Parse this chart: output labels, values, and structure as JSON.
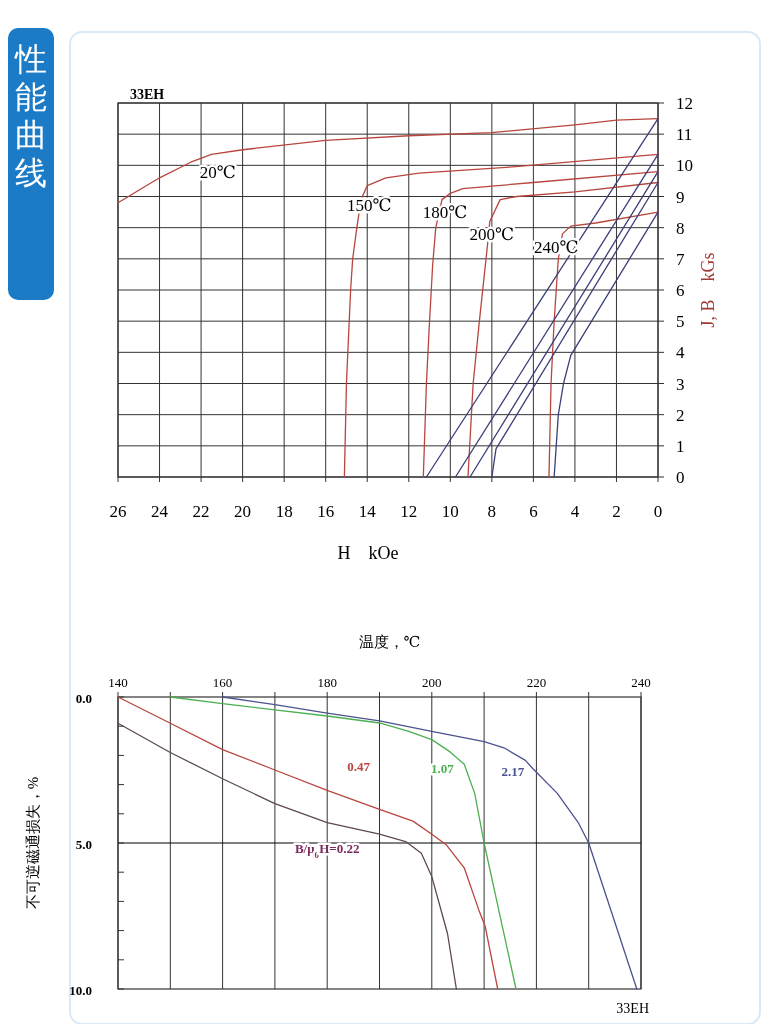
{
  "chart_data": [
    {
      "type": "line",
      "title": "性能曲线",
      "subtitle": "33EH",
      "xlabel": "H    kOe",
      "ylabel": "J, B    kGs",
      "xlim": [
        26,
        0
      ],
      "ylim": [
        0,
        12
      ],
      "xticks": [
        26,
        24,
        22,
        20,
        18,
        16,
        14,
        12,
        10,
        8,
        6,
        4,
        2,
        0
      ],
      "yticks": [
        0,
        1,
        2,
        3,
        4,
        5,
        6,
        7,
        8,
        9,
        10,
        11,
        12
      ],
      "grid": true,
      "series": [
        {
          "name": "20℃",
          "color": "#b8453e",
          "x": [
            26,
            24,
            22.5,
            21.5,
            20,
            16,
            12,
            8,
            4,
            2,
            0
          ],
          "values": [
            8.8,
            9.6,
            10.1,
            10.35,
            10.5,
            10.8,
            10.95,
            11.05,
            11.3,
            11.45,
            11.5
          ]
        },
        {
          "name": "150℃",
          "color": "#b8453e",
          "x": [
            15.1,
            15,
            14.8,
            14.7,
            14.5,
            14.3,
            14,
            13.1,
            11.5,
            7,
            0
          ],
          "values": [
            0,
            3,
            6,
            7,
            8,
            8.9,
            9.35,
            9.6,
            9.75,
            9.95,
            10.35
          ]
        },
        {
          "name": "180℃",
          "color": "#b8453e",
          "x": [
            11.3,
            11.15,
            11,
            10.85,
            10.7,
            10.4,
            10,
            9.4,
            6,
            0
          ],
          "values": [
            0,
            3,
            5,
            6.8,
            8,
            8.9,
            9.1,
            9.25,
            9.45,
            9.8
          ]
        },
        {
          "name": "200℃",
          "color": "#b8453e",
          "x": [
            9.15,
            8.9,
            8.6,
            8.2,
            8.1,
            7.6,
            6.8,
            4,
            0
          ],
          "values": [
            0,
            3,
            5,
            7.5,
            8.2,
            8.9,
            9,
            9.15,
            9.45
          ]
        },
        {
          "name": "240℃",
          "color": "#b8453e",
          "x": [
            5.25,
            5.15,
            5,
            4.9,
            4.8,
            4.6,
            4.2,
            3,
            0
          ],
          "values": [
            0,
            3,
            5,
            6,
            7,
            7.8,
            8.05,
            8.15,
            8.5
          ]
        },
        {
          "color": "#3b3f78",
          "x": [
            11.15,
            0
          ],
          "values": [
            0,
            11.5
          ]
        },
        {
          "color": "#3b3f78",
          "x": [
            9.75,
            0
          ],
          "values": [
            0,
            10.35
          ]
        },
        {
          "color": "#3b3f78",
          "x": [
            9.05,
            0
          ],
          "values": [
            0,
            9.8
          ]
        },
        {
          "color": "#3b3f78",
          "x": [
            8,
            7.8,
            0
          ],
          "values": [
            0,
            0.9,
            9.45
          ]
        },
        {
          "color": "#3b3f78",
          "x": [
            5,
            4.8,
            4.55,
            4.2,
            0
          ],
          "values": [
            0,
            2,
            3,
            3.9,
            8.5
          ]
        }
      ]
    },
    {
      "type": "line",
      "xlabel": "温度，℃",
      "ylabel": "不可逆磁通损失，%",
      "xlim": [
        140,
        240
      ],
      "ylim": [
        10,
        0
      ],
      "xticks": [
        140,
        {
          "value": 150,
          "label": null
        },
        160,
        {
          "value": 170,
          "label": null
        },
        180,
        {
          "value": 190,
          "label": null
        },
        200,
        {
          "value": 210,
          "label": null
        },
        220,
        {
          "value": 230,
          "label": null
        },
        240
      ],
      "yticks": [
        {
          "value": 0,
          "label": "0.0"
        },
        {
          "value": 1,
          "label": null
        },
        {
          "value": 2,
          "label": null
        },
        {
          "value": 3,
          "label": null
        },
        {
          "value": 4,
          "label": null
        },
        {
          "value": 5,
          "label": "5.0"
        },
        {
          "value": 6,
          "label": null
        },
        {
          "value": 7,
          "label": null
        },
        {
          "value": 8,
          "label": null
        },
        {
          "value": 9,
          "label": null
        },
        {
          "value": 10,
          "label": "10.0"
        }
      ],
      "grid": "x",
      "ref_lines": [
        {
          "axis": "y",
          "value": 5,
          "color": "#000000"
        }
      ],
      "annotations": [
        "33EH"
      ],
      "series": [
        {
          "name": "B/μ$_{0}$H=0.22",
          "color": "#5e4a4e",
          "x": [
            140,
            150,
            160,
            170,
            180,
            190,
            195,
            198,
            200,
            203,
            204.7
          ],
          "values": [
            0.9,
            1.9,
            2.8,
            3.65,
            4.3,
            4.7,
            4.95,
            5.35,
            6.15,
            8.1,
            10
          ]
        },
        {
          "name": "0.47",
          "color": "#b8453e",
          "x": [
            140,
            150,
            160,
            170,
            180,
            190,
            196.4,
            200,
            202.7,
            206.2,
            209,
            210.2,
            212.6
          ],
          "values": [
            0,
            0.9,
            1.8,
            2.5,
            3.2,
            3.85,
            4.25,
            4.7,
            5.05,
            5.85,
            7.3,
            7.85,
            10
          ]
        },
        {
          "name": "1.07",
          "color": "#4caf50",
          "x": [
            150,
            160,
            170,
            180,
            190,
            195.6,
            200,
            203.5,
            206.2,
            208.2,
            210,
            216.1
          ],
          "values": [
            0,
            0.23,
            0.44,
            0.65,
            0.89,
            1.18,
            1.46,
            1.88,
            2.3,
            3.3,
            5,
            10
          ]
        },
        {
          "name": "2.17",
          "color": "#4a5290",
          "x": [
            160,
            170,
            180,
            190,
            200,
            210,
            213.8,
            217.9,
            219.3,
            224,
            228,
            230,
            234.7,
            239.2
          ],
          "values": [
            0,
            0.26,
            0.55,
            0.82,
            1.18,
            1.53,
            1.74,
            2.17,
            2.45,
            3.3,
            4.3,
            5,
            7.55,
            10
          ]
        }
      ]
    }
  ]
}
